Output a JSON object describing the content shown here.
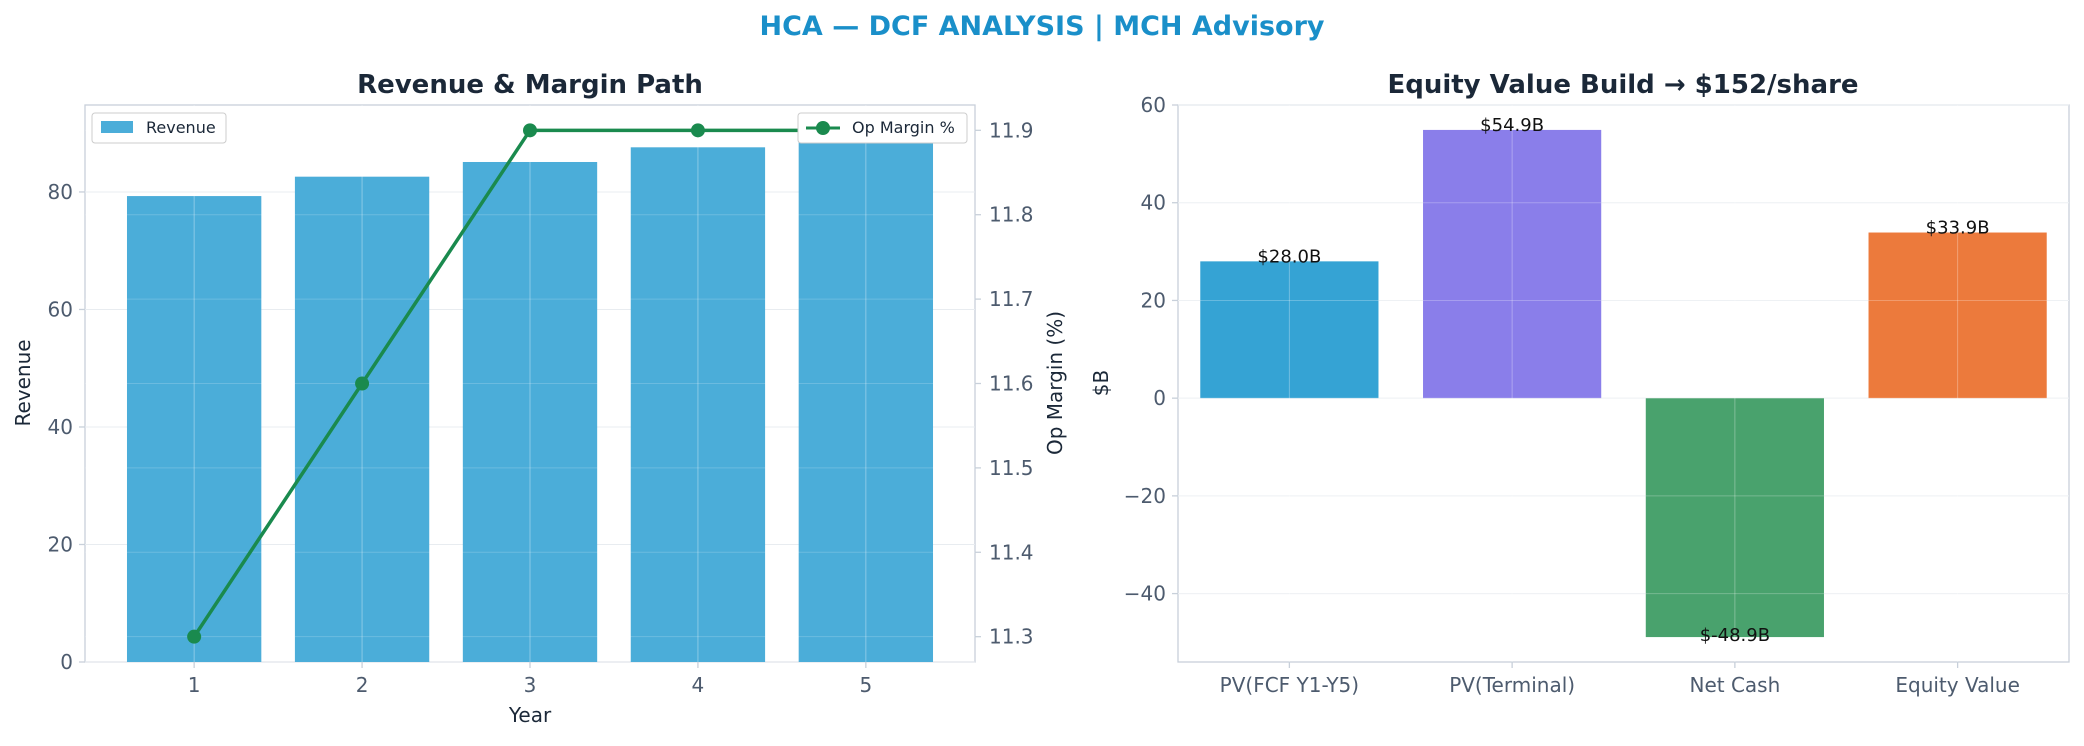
{
  "figure": {
    "suptitle": "HCA — DCF ANALYSIS | MCH Advisory",
    "suptitle_color": "#1a8fc9"
  },
  "chart_data": [
    {
      "type": "bar+line",
      "title": "Revenue & Margin Path",
      "xlabel": "Year",
      "ylabel": "Revenue",
      "y2label": "Op Margin (%)",
      "categories": [
        "1",
        "2",
        "3",
        "4",
        "5"
      ],
      "series": [
        {
          "name": "Revenue",
          "type": "bar",
          "axis": "left",
          "color": "#4badd9",
          "values": [
            79.3,
            82.6,
            85.1,
            87.6,
            90.2
          ]
        },
        {
          "name": "Op Margin %",
          "type": "line",
          "axis": "right",
          "color": "#1a8a4e",
          "values": [
            11.3,
            11.6,
            11.9,
            11.9,
            11.9
          ]
        }
      ],
      "ylim": [
        0,
        94.8
      ],
      "yticks": [
        "0",
        "20",
        "40",
        "60",
        "80"
      ],
      "y2lim": [
        11.27,
        11.93
      ],
      "y2ticks": [
        "11.3",
        "11.4",
        "11.5",
        "11.6",
        "11.7",
        "11.8",
        "11.9"
      ],
      "grid": true,
      "legend": {
        "left": "upper-left",
        "right": "upper-right"
      }
    },
    {
      "type": "bar",
      "title": "Equity Value Build → $152/share",
      "xlabel": "",
      "ylabel": "$B",
      "categories": [
        "PV(FCF Y1-Y5)",
        "PV(Terminal)",
        "Net Cash",
        "Equity Value"
      ],
      "values": [
        28.0,
        54.9,
        -48.9,
        33.9
      ],
      "data_labels": [
        "$28.0B",
        "$54.9B",
        "$-48.9B",
        "$33.9B"
      ],
      "colors": [
        "#35a3d4",
        "#8a7eea",
        "#49a26d",
        "#ec7a3c"
      ],
      "ylim": [
        -54,
        60
      ],
      "yticks": [
        "−40",
        "−20",
        "0",
        "20",
        "40",
        "60"
      ],
      "grid": true
    }
  ]
}
